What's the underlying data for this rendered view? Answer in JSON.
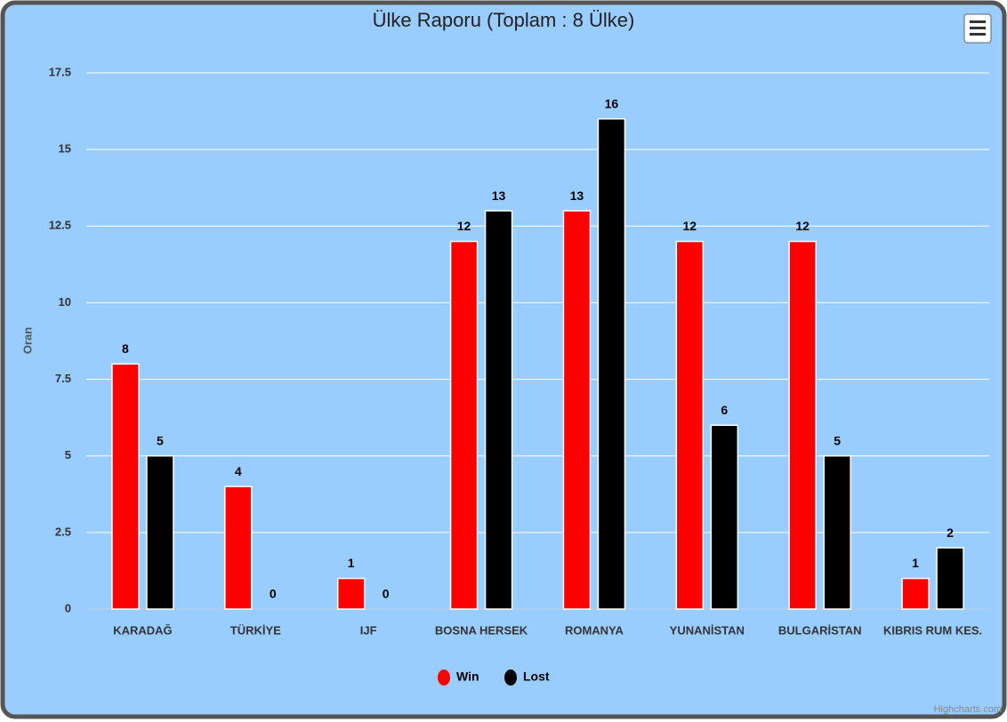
{
  "chart_data": {
    "type": "bar",
    "title": "Ülke Raporu (Toplam : 8 Ülke)",
    "y_label": "Oran",
    "categories": [
      "KARADAĞ",
      "TÜRKİYE",
      "IJF",
      "BOSNA HERSEK",
      "ROMANYA",
      "YUNANİSTAN",
      "BULGARİSTAN",
      "KIBRIS RUM KES."
    ],
    "series": [
      {
        "name": "Win",
        "color": "#ff0000",
        "values": [
          8,
          4,
          1,
          12,
          13,
          12,
          12,
          1
        ]
      },
      {
        "name": "Lost",
        "color": "#000000",
        "values": [
          5,
          0,
          0,
          13,
          16,
          6,
          5,
          2
        ]
      }
    ],
    "ylim": [
      0,
      17.5
    ],
    "yticks": [
      0,
      2.5,
      5,
      7.5,
      10,
      12.5,
      15,
      17.5
    ],
    "grid": true,
    "legend": "bottom",
    "credits": "Highcharts.com"
  }
}
